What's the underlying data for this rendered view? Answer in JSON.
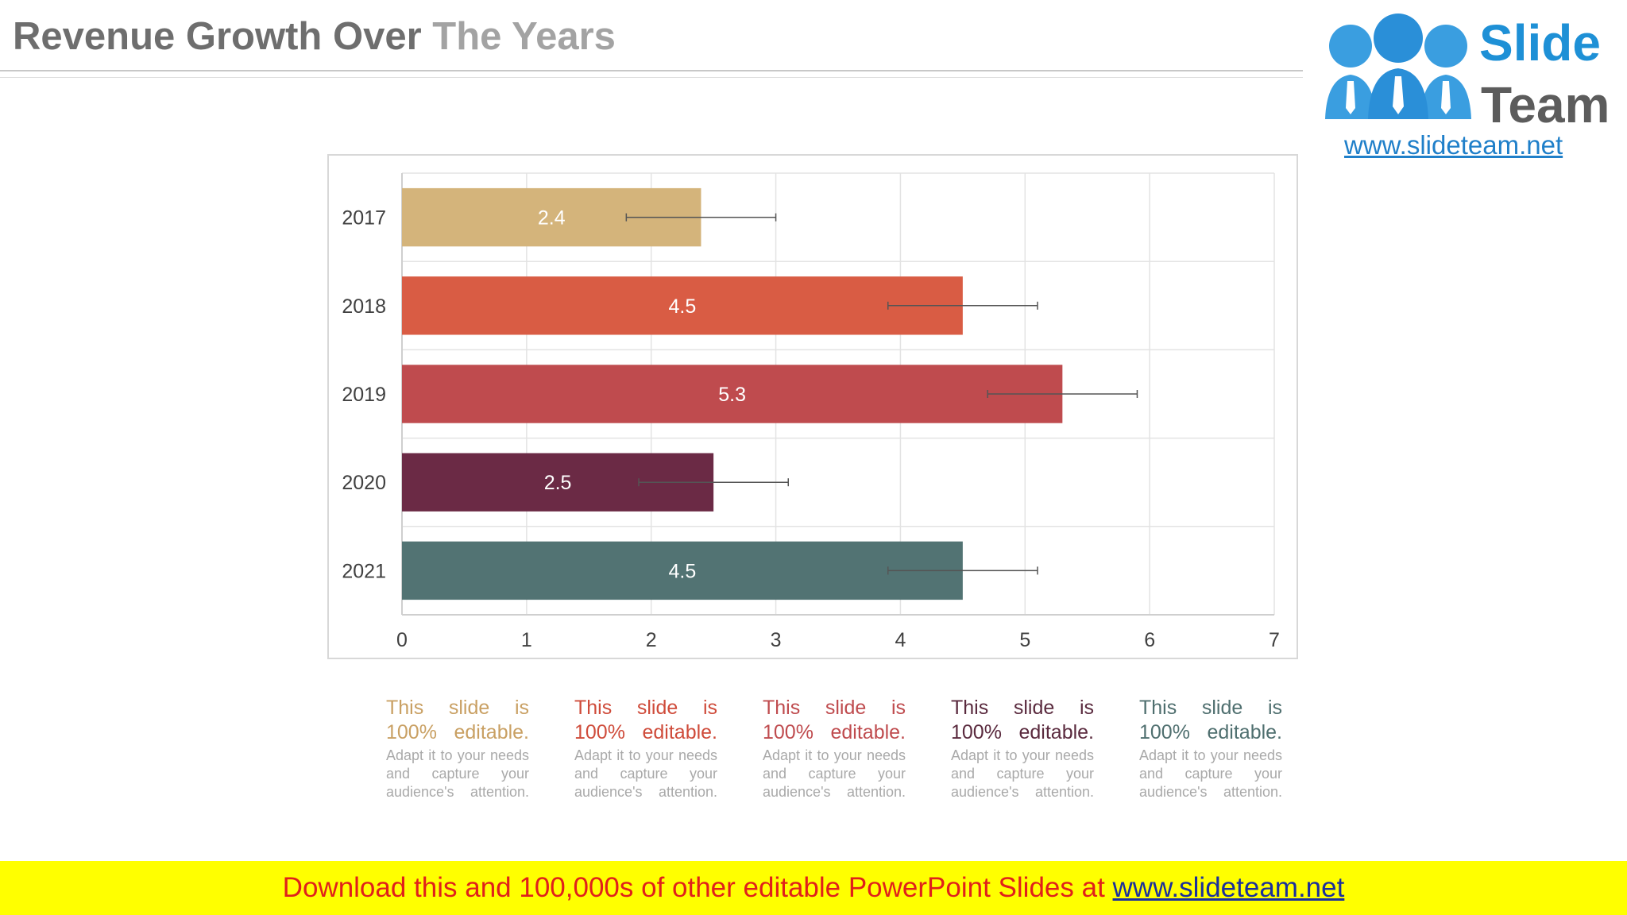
{
  "header": {
    "title_part1": "Revenue Growth Over",
    "title_part2": "The Years"
  },
  "logo": {
    "word1": "Slide",
    "word2": "Team",
    "url": "www.slideteam.net"
  },
  "colors": {
    "bar_2017": "#d4b47b",
    "bar_2018": "#d95c44",
    "bar_2019": "#bf4b4e",
    "bar_2020": "#6b2a45",
    "bar_2021": "#527373",
    "error_bar": "#555555",
    "grid": "#e3e3e3",
    "axis_text": "#404040",
    "banner_bg": "#ffff00",
    "banner_text": "#e0201b",
    "banner_link": "#1a2f9c"
  },
  "chart_data": {
    "type": "bar",
    "orientation": "horizontal",
    "title": "Revenue Growth Over The Years",
    "categories": [
      "2017",
      "2018",
      "2019",
      "2020",
      "2021"
    ],
    "values": [
      2.4,
      4.5,
      5.3,
      2.5,
      4.5
    ],
    "error_low": [
      1.8,
      3.9,
      4.7,
      1.9,
      3.9
    ],
    "error_high": [
      3.0,
      5.1,
      5.9,
      3.1,
      5.1
    ],
    "data_labels": [
      "2.4",
      "4.5",
      "5.3",
      "2.5",
      "4.5"
    ],
    "xlim": [
      0,
      7
    ],
    "x_ticks": [
      0,
      1,
      2,
      3,
      4,
      5,
      6,
      7
    ],
    "xlabel": "",
    "ylabel": "",
    "grid": true,
    "legend": "none"
  },
  "descriptions": [
    {
      "heading": "This slide is 100% editable.",
      "body": "Adapt it to your needs and capture your audience's attention.",
      "color": "#c9a063"
    },
    {
      "heading": "This slide is 100% editable.",
      "body": "Adapt it to your needs and capture your audience's attention.",
      "color": "#cf4b3a"
    },
    {
      "heading": "This slide is 100% editable.",
      "body": "Adapt it to your needs and capture your audience's attention.",
      "color": "#bf4b4e"
    },
    {
      "heading": "This slide is 100% editable.",
      "body": "Adapt it to your needs and capture your audience's attention.",
      "color": "#5a2a3e"
    },
    {
      "heading": "This slide is 100% editable.",
      "body": "Adapt it to your needs and capture your audience's attention.",
      "color": "#4f6f6f"
    }
  ],
  "banner": {
    "text": "Download this and 100,000s of other editable PowerPoint Slides at",
    "link": "www.slideteam.net"
  }
}
